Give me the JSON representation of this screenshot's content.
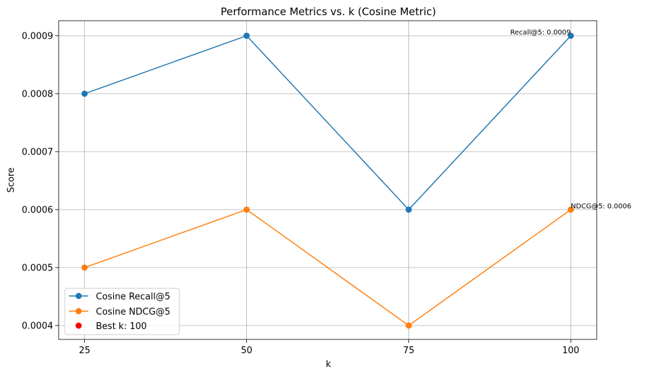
{
  "chart_data": {
    "type": "line",
    "title": "Performance Metrics vs. k (Cosine Metric)",
    "xlabel": "k",
    "ylabel": "Score",
    "x": [
      25,
      50,
      75,
      100
    ],
    "xticks": [
      "25",
      "50",
      "75",
      "100"
    ],
    "yticks": [
      "0.0004",
      "0.0005",
      "0.0006",
      "0.0007",
      "0.0008",
      "0.0009"
    ],
    "xlim": [
      21,
      104
    ],
    "ylim": [
      0.000376,
      0.000926
    ],
    "grid": true,
    "legend_position": "lower-left",
    "series": [
      {
        "name": "Cosine Recall@5",
        "values": [
          0.0008,
          0.0009,
          0.0006,
          0.0009
        ],
        "color": "#1f77b4"
      },
      {
        "name": "Cosine NDCG@5",
        "values": [
          0.0005,
          0.0006,
          0.0004,
          0.0006
        ],
        "color": "#ff7f0e"
      }
    ],
    "best_point": {
      "label": "Best k: 100",
      "x": 100,
      "color": "#ff0000"
    },
    "annotations": [
      {
        "text": "Recall@5: 0.0009",
        "x": 100,
        "y": 0.0009,
        "align": "end"
      },
      {
        "text": "NDCG@5: 0.0006",
        "x": 100,
        "y": 0.0006,
        "align": "start"
      }
    ]
  }
}
